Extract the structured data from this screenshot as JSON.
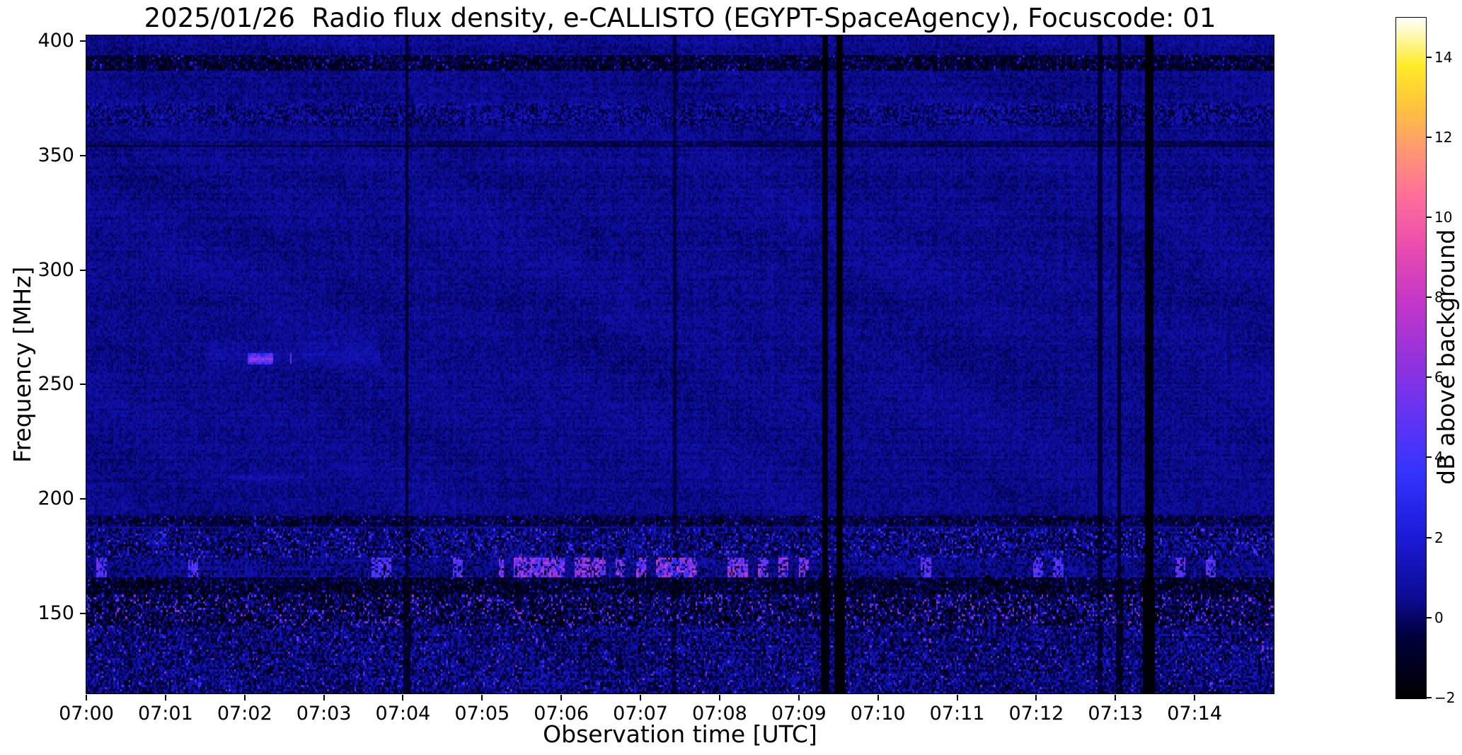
{
  "chart_data": {
    "type": "heatmap",
    "title": "2025/01/26  Radio flux density, e-CALLISTO (EGYPT-SpaceAgency), Focuscode: 01",
    "xlabel": "Observation time [UTC]",
    "ylabel": "Frequency [MHz]",
    "legend": "none",
    "grid": false,
    "x_axis": {
      "unit": "UTC time",
      "start_time": "07:00",
      "range_minutes": [
        0,
        15
      ],
      "ticks": [
        {
          "minute": 0,
          "label": "07:00"
        },
        {
          "minute": 1,
          "label": "07:01"
        },
        {
          "minute": 2,
          "label": "07:02"
        },
        {
          "minute": 3,
          "label": "07:03"
        },
        {
          "minute": 4,
          "label": "07:04"
        },
        {
          "minute": 5,
          "label": "07:05"
        },
        {
          "minute": 6,
          "label": "07:06"
        },
        {
          "minute": 7,
          "label": "07:07"
        },
        {
          "minute": 8,
          "label": "07:08"
        },
        {
          "minute": 9,
          "label": "07:09"
        },
        {
          "minute": 10,
          "label": "07:10"
        },
        {
          "minute": 11,
          "label": "07:11"
        },
        {
          "minute": 12,
          "label": "07:12"
        },
        {
          "minute": 13,
          "label": "07:13"
        },
        {
          "minute": 14,
          "label": "07:14"
        }
      ]
    },
    "y_axis": {
      "unit": "MHz",
      "range_mhz": [
        115,
        402.5
      ],
      "ticks": [
        {
          "mhz": 400,
          "label": "400"
        },
        {
          "mhz": 350,
          "label": "350"
        },
        {
          "mhz": 300,
          "label": "300"
        },
        {
          "mhz": 250,
          "label": "250"
        },
        {
          "mhz": 200,
          "label": "200"
        },
        {
          "mhz": 150,
          "label": "150"
        }
      ]
    },
    "colorbar": {
      "label": "dB above background",
      "value_range": [
        -2,
        15
      ],
      "ticks": [
        {
          "value": -2,
          "label": "−2"
        },
        {
          "value": 0,
          "label": "0"
        },
        {
          "value": 2,
          "label": "2"
        },
        {
          "value": 4,
          "label": "4"
        },
        {
          "value": 6,
          "label": "6"
        },
        {
          "value": 8,
          "label": "8"
        },
        {
          "value": 10,
          "label": "10"
        },
        {
          "value": 12,
          "label": "12"
        },
        {
          "value": 14,
          "label": "14"
        }
      ],
      "colormap_stops": [
        {
          "pos": 0.0,
          "color": "#000000"
        },
        {
          "pos": 0.09,
          "color": "#00003c"
        },
        {
          "pos": 0.15,
          "color": "#0c0c96"
        },
        {
          "pos": 0.24,
          "color": "#1b1bd8"
        },
        {
          "pos": 0.33,
          "color": "#3333ff"
        },
        {
          "pos": 0.42,
          "color": "#6633f2"
        },
        {
          "pos": 0.5,
          "color": "#9632dc"
        },
        {
          "pos": 0.58,
          "color": "#c236c8"
        },
        {
          "pos": 0.66,
          "color": "#e84bb0"
        },
        {
          "pos": 0.74,
          "color": "#ff6f9a"
        },
        {
          "pos": 0.81,
          "color": "#ff9b6e"
        },
        {
          "pos": 0.87,
          "color": "#ffc43c"
        },
        {
          "pos": 0.93,
          "color": "#ffeb28"
        },
        {
          "pos": 1.0,
          "color": "#ffffff"
        }
      ]
    },
    "spectrogram_model": {
      "description": "Quiet solar radio spectrogram: uniform dark-blue background near 0.5 dB with fine noise, horizontal RFI bands below 195 MHz and near 355/370/390 MHz, bright magenta interference dashes near 168 MHz (strongest 07:05-07:09), heavy mottled interference below 160 MHz, a short bright drift streak near 261 MHz around 07:02, and black vertical data-dropout columns near 07:04, 07:07.4, 07:09.3-07:09.5, 07:12.8, 07:13.0 and 07:13.4",
      "background_db": 0.45,
      "noise_db": 1.1,
      "bands": [
        {
          "f0": 387,
          "f1": 394,
          "mode": "dark_speckle",
          "strength": 2.0
        },
        {
          "f0": 363,
          "f1": 373,
          "mode": "grain",
          "strength": 1.1
        },
        {
          "f0": 354,
          "f1": 356.5,
          "mode": "dark_line",
          "strength": 0.7
        },
        {
          "f0": 188,
          "f1": 192.5,
          "mode": "dark_speckle",
          "strength": 1.4
        },
        {
          "f0": 174,
          "f1": 187,
          "mode": "rfi_mixed",
          "strength": 1.0
        },
        {
          "f0": 165.5,
          "f1": 174,
          "mode": "rfi_bright",
          "strength": 1.0,
          "hot_t": [
            5.2,
            9.4
          ]
        },
        {
          "f0": 158,
          "f1": 165.5,
          "mode": "dark_speckle",
          "strength": 2.2
        },
        {
          "f0": 145,
          "f1": 158,
          "mode": "rfi_heavy",
          "strength": 1.0
        },
        {
          "f0": 115,
          "f1": 145,
          "mode": "mottle",
          "strength": 1.0
        }
      ],
      "streaks": [
        {
          "t0": 1.85,
          "t1": 2.6,
          "f": 261,
          "hw": 2.2,
          "db": 5.0,
          "soft": false
        },
        {
          "t0": 1.5,
          "t1": 3.7,
          "f": 263,
          "hw": 9.0,
          "db": 1.1,
          "soft": true
        },
        {
          "t0": 0.0,
          "t1": 4.3,
          "f": 355.5,
          "hw": 1.2,
          "db": 1.4,
          "soft": true
        },
        {
          "t0": 1.8,
          "t1": 2.75,
          "f": 209,
          "hw": 1.8,
          "db": 1.6,
          "soft": true
        }
      ],
      "dropout_columns": [
        {
          "t": 4.05,
          "w": 0.06,
          "depth": 0.5
        },
        {
          "t": 7.43,
          "w": 0.05,
          "depth": 0.35
        },
        {
          "t": 9.33,
          "w": 0.08,
          "depth": 0.85
        },
        {
          "t": 9.52,
          "w": 0.09,
          "depth": 0.92
        },
        {
          "t": 12.8,
          "w": 0.05,
          "depth": 0.45
        },
        {
          "t": 13.05,
          "w": 0.06,
          "depth": 0.6
        },
        {
          "t": 13.42,
          "w": 0.1,
          "depth": 0.92
        }
      ]
    }
  }
}
